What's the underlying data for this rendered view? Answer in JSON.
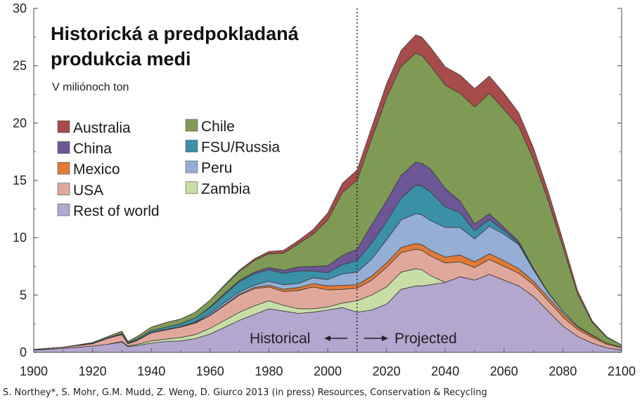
{
  "chart_data": {
    "type": "area",
    "stacked": true,
    "title": "Historická a predpokladaná produkcia medi",
    "subtitle": "V miliónoch ton",
    "xlabel": "",
    "ylabel": "",
    "xlim": [
      1900,
      2100
    ],
    "ylim": [
      0,
      30
    ],
    "x_ticks": [
      1900,
      1920,
      1940,
      1960,
      1980,
      2000,
      2020,
      2040,
      2060,
      2080,
      2100
    ],
    "y_ticks": [
      0,
      5,
      10,
      15,
      20,
      25,
      30
    ],
    "divider_year": 2010,
    "annotations": {
      "historical": "Historical",
      "projected": "Projected"
    },
    "source": "S. Northey*, S. Mohr, G.M. Mudd, Z. Weng, D. Giurco 2013 (in press) Resources, Conservation & Recycling",
    "x": [
      1900,
      1910,
      1920,
      1925,
      1930,
      1932,
      1935,
      1940,
      1945,
      1950,
      1955,
      1960,
      1965,
      1970,
      1975,
      1980,
      1985,
      1990,
      1995,
      2000,
      2005,
      2010,
      2015,
      2020,
      2025,
      2030,
      2032,
      2035,
      2040,
      2045,
      2050,
      2055,
      2060,
      2065,
      2070,
      2075,
      2080,
      2085,
      2090,
      2095,
      2100
    ],
    "series": [
      {
        "name": "Rest of world",
        "color": "#b3a6cf",
        "values": [
          0.2,
          0.35,
          0.55,
          0.7,
          0.9,
          0.5,
          0.6,
          0.8,
          0.95,
          1.0,
          1.2,
          1.6,
          2.2,
          2.8,
          3.3,
          3.8,
          3.6,
          3.4,
          3.5,
          3.7,
          3.9,
          3.5,
          3.7,
          4.2,
          5.5,
          5.8,
          5.8,
          5.9,
          6.1,
          6.6,
          6.3,
          6.8,
          6.3,
          5.8,
          4.9,
          3.6,
          2.3,
          1.4,
          0.8,
          0.4,
          0.2
        ]
      },
      {
        "name": "Zambia",
        "color": "#c7dfa7",
        "values": [
          0,
          0,
          0,
          0,
          0.05,
          0.05,
          0.1,
          0.2,
          0.2,
          0.3,
          0.35,
          0.5,
          0.6,
          0.7,
          0.75,
          0.7,
          0.5,
          0.4,
          0.3,
          0.25,
          0.4,
          1.0,
          1.3,
          1.5,
          1.5,
          1.5,
          1.4,
          0.8,
          0,
          0,
          0,
          0,
          0,
          0,
          0,
          0,
          0,
          0,
          0,
          0,
          0
        ]
      },
      {
        "name": "USA",
        "color": "#e0a89b",
        "values": [
          0.05,
          0.1,
          0.2,
          0.5,
          0.6,
          0.2,
          0.3,
          0.7,
          0.8,
          0.9,
          1.0,
          1.1,
          1.3,
          1.5,
          1.5,
          1.2,
          1.2,
          1.6,
          1.9,
          1.5,
          1.2,
          1.1,
          1.3,
          1.7,
          1.7,
          1.7,
          1.7,
          1.7,
          1.7,
          1.3,
          1.1,
          1.3,
          1.2,
          1.1,
          1.0,
          0.9,
          0.8,
          0.6,
          0.5,
          0.3,
          0.2
        ]
      },
      {
        "name": "Mexico",
        "color": "#e07a35",
        "values": [
          0,
          0,
          0.05,
          0.05,
          0.05,
          0.05,
          0.05,
          0.05,
          0.05,
          0.05,
          0.06,
          0.06,
          0.06,
          0.08,
          0.1,
          0.15,
          0.2,
          0.25,
          0.3,
          0.35,
          0.35,
          0.3,
          0.35,
          0.4,
          0.45,
          0.5,
          0.5,
          0.5,
          0.5,
          0.6,
          0.5,
          0.5,
          0.5,
          0.4,
          0.3,
          0.3,
          0.3,
          0.2,
          0.15,
          0.1,
          0.05
        ]
      },
      {
        "name": "Peru",
        "color": "#94aed6",
        "values": [
          0,
          0,
          0,
          0,
          0,
          0,
          0,
          0,
          0,
          0,
          0.05,
          0.15,
          0.2,
          0.2,
          0.2,
          0.35,
          0.4,
          0.35,
          0.5,
          0.55,
          1.0,
          1.1,
          1.5,
          2.0,
          2.4,
          2.6,
          2.6,
          2.6,
          2.6,
          2.4,
          2.0,
          2.4,
          2.3,
          2.1,
          1.0,
          0.4,
          0.2,
          0.1,
          0.05,
          0,
          0
        ]
      },
      {
        "name": "FSU/Russia",
        "color": "#3a90a6",
        "values": [
          0,
          0,
          0,
          0,
          0.05,
          0.05,
          0.1,
          0.15,
          0.2,
          0.25,
          0.35,
          0.5,
          0.7,
          0.9,
          1.0,
          1.0,
          1.0,
          1.1,
          0.6,
          0.6,
          0.8,
          1.0,
          1.4,
          1.6,
          1.9,
          2.5,
          2.5,
          2.5,
          1.8,
          1.3,
          0.7,
          0.6,
          0.3,
          0.1,
          0.05,
          0,
          0,
          0,
          0,
          0,
          0
        ]
      },
      {
        "name": "China",
        "color": "#6c5695",
        "values": [
          0,
          0,
          0,
          0,
          0,
          0,
          0,
          0,
          0,
          0,
          0,
          0.05,
          0.1,
          0.1,
          0.15,
          0.2,
          0.25,
          0.35,
          0.4,
          0.6,
          0.8,
          1.0,
          1.6,
          1.8,
          2.0,
          2.0,
          2.0,
          2.0,
          1.6,
          1.0,
          0.6,
          0.5,
          0.3,
          0.2,
          0.1,
          0.05,
          0,
          0,
          0,
          0,
          0
        ]
      },
      {
        "name": "Chile",
        "color": "#7f9a55",
        "values": [
          0,
          0,
          0.05,
          0.1,
          0.2,
          0.1,
          0.2,
          0.3,
          0.4,
          0.4,
          0.5,
          0.6,
          0.7,
          0.8,
          1.0,
          1.2,
          1.5,
          2.0,
          2.8,
          4.0,
          5.5,
          6.0,
          7.5,
          9.0,
          9.5,
          9.5,
          9.4,
          9.0,
          9.0,
          9.4,
          10.2,
          10.5,
          10.3,
          10.0,
          9.5,
          8.0,
          5.6,
          2.8,
          1.1,
          0.5,
          0.2
        ]
      },
      {
        "name": "Australia",
        "color": "#a84b4b",
        "values": [
          0,
          0,
          0,
          0,
          0,
          0,
          0,
          0,
          0,
          0,
          0,
          0,
          0.05,
          0.1,
          0.15,
          0.2,
          0.25,
          0.3,
          0.4,
          0.6,
          0.8,
          0.9,
          1.0,
          1.2,
          1.4,
          1.6,
          1.6,
          1.6,
          1.6,
          1.6,
          1.6,
          1.5,
          1.4,
          1.2,
          1.0,
          0.8,
          0.6,
          0.3,
          0.15,
          0.05,
          0
        ]
      }
    ],
    "legend": {
      "placement": "top-left",
      "columns": [
        [
          "Australia",
          "China",
          "Mexico",
          "USA",
          "Rest of world"
        ],
        [
          "Chile",
          "FSU/Russia",
          "Peru",
          "Zambia"
        ]
      ]
    }
  }
}
